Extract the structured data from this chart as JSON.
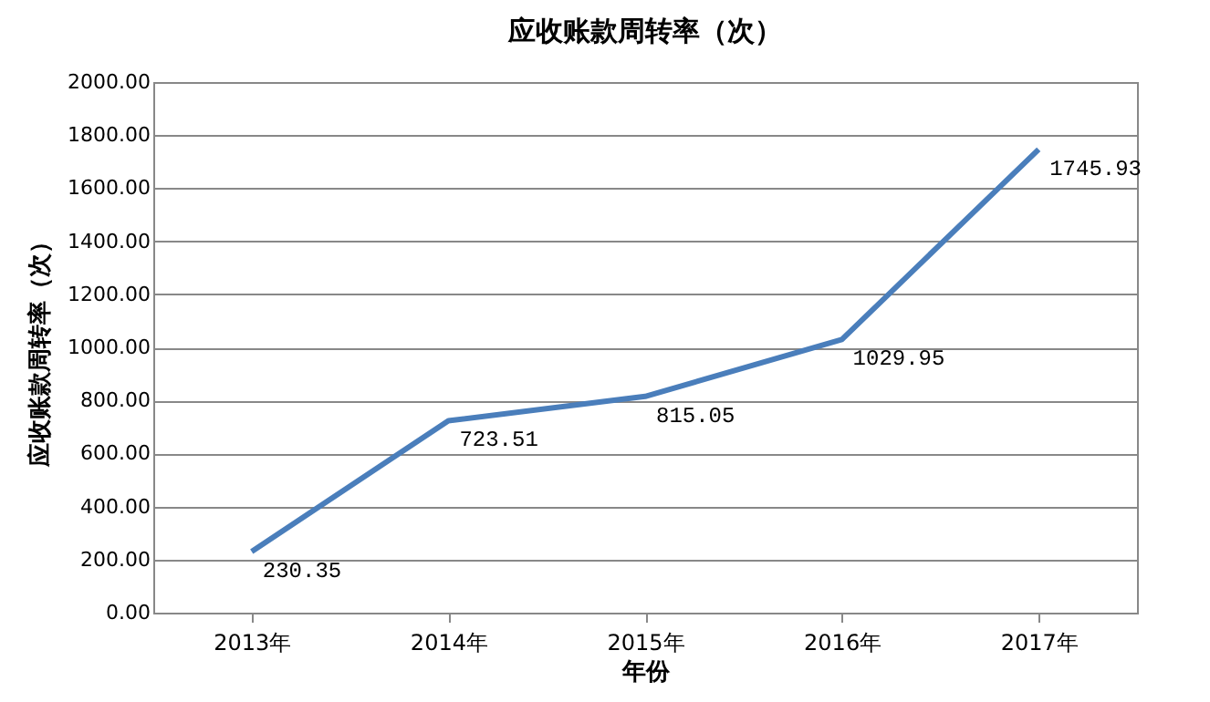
{
  "chart_data": {
    "type": "line",
    "title": "应收账款周转率（次）",
    "xlabel": "年份",
    "ylabel": "应收账款周转率（次）",
    "categories": [
      "2013年",
      "2014年",
      "2015年",
      "2016年",
      "2017年"
    ],
    "series": [
      {
        "color": "#4a7ebb",
        "values": [
          230.35,
          723.51,
          815.05,
          1029.95,
          1745.93
        ]
      }
    ],
    "ylim": [
      0,
      2000
    ],
    "yticks": [
      {
        "value": 0,
        "label": "0.00"
      },
      {
        "value": 200,
        "label": "200.00"
      },
      {
        "value": 400,
        "label": "400.00"
      },
      {
        "value": 600,
        "label": "600.00"
      },
      {
        "value": 800,
        "label": "800.00"
      },
      {
        "value": 1000,
        "label": "1000.00"
      },
      {
        "value": 1200,
        "label": "1200.00"
      },
      {
        "value": 1400,
        "label": "1400.00"
      },
      {
        "value": 1600,
        "label": "1600.00"
      },
      {
        "value": 1800,
        "label": "1800.00"
      },
      {
        "value": 2000,
        "label": "2000.00"
      }
    ],
    "grid": "y",
    "data_labels": true,
    "line_style": "solid",
    "marker": "none",
    "legend": false
  }
}
